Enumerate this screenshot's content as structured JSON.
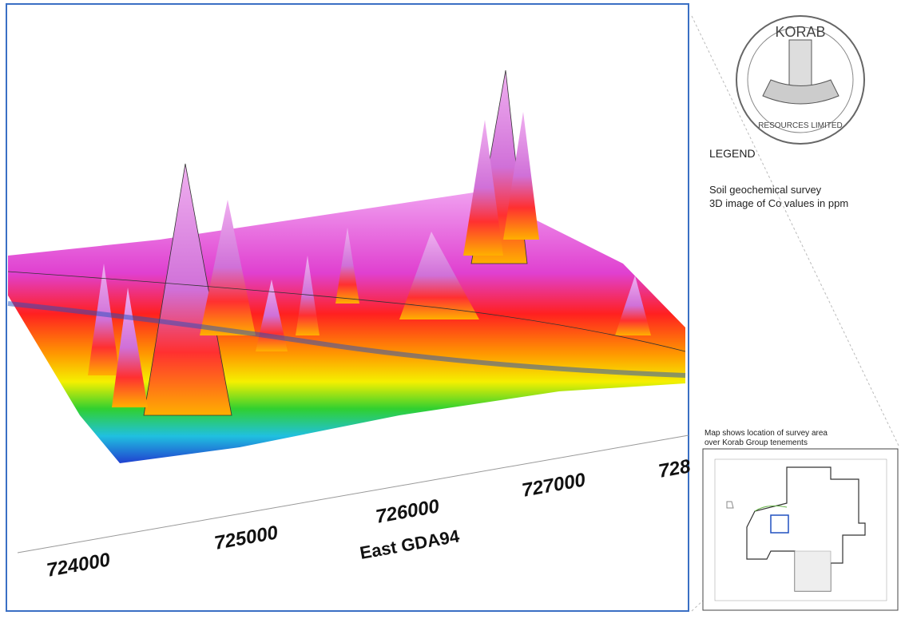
{
  "logo": {
    "name": "KORAB",
    "subtitle": "RESOURCES LIMITED"
  },
  "legend": {
    "title": "LEGEND",
    "lines": [
      "Soil geochemical survey",
      "3D image of Co values in ppm"
    ]
  },
  "axis": {
    "ticks": [
      "724000",
      "725000",
      "726000",
      "727000",
      "728"
    ],
    "label": "East GDA94"
  },
  "inset": {
    "caption": [
      "Map shows location of survey area",
      "over Korab Group tenements"
    ]
  }
}
